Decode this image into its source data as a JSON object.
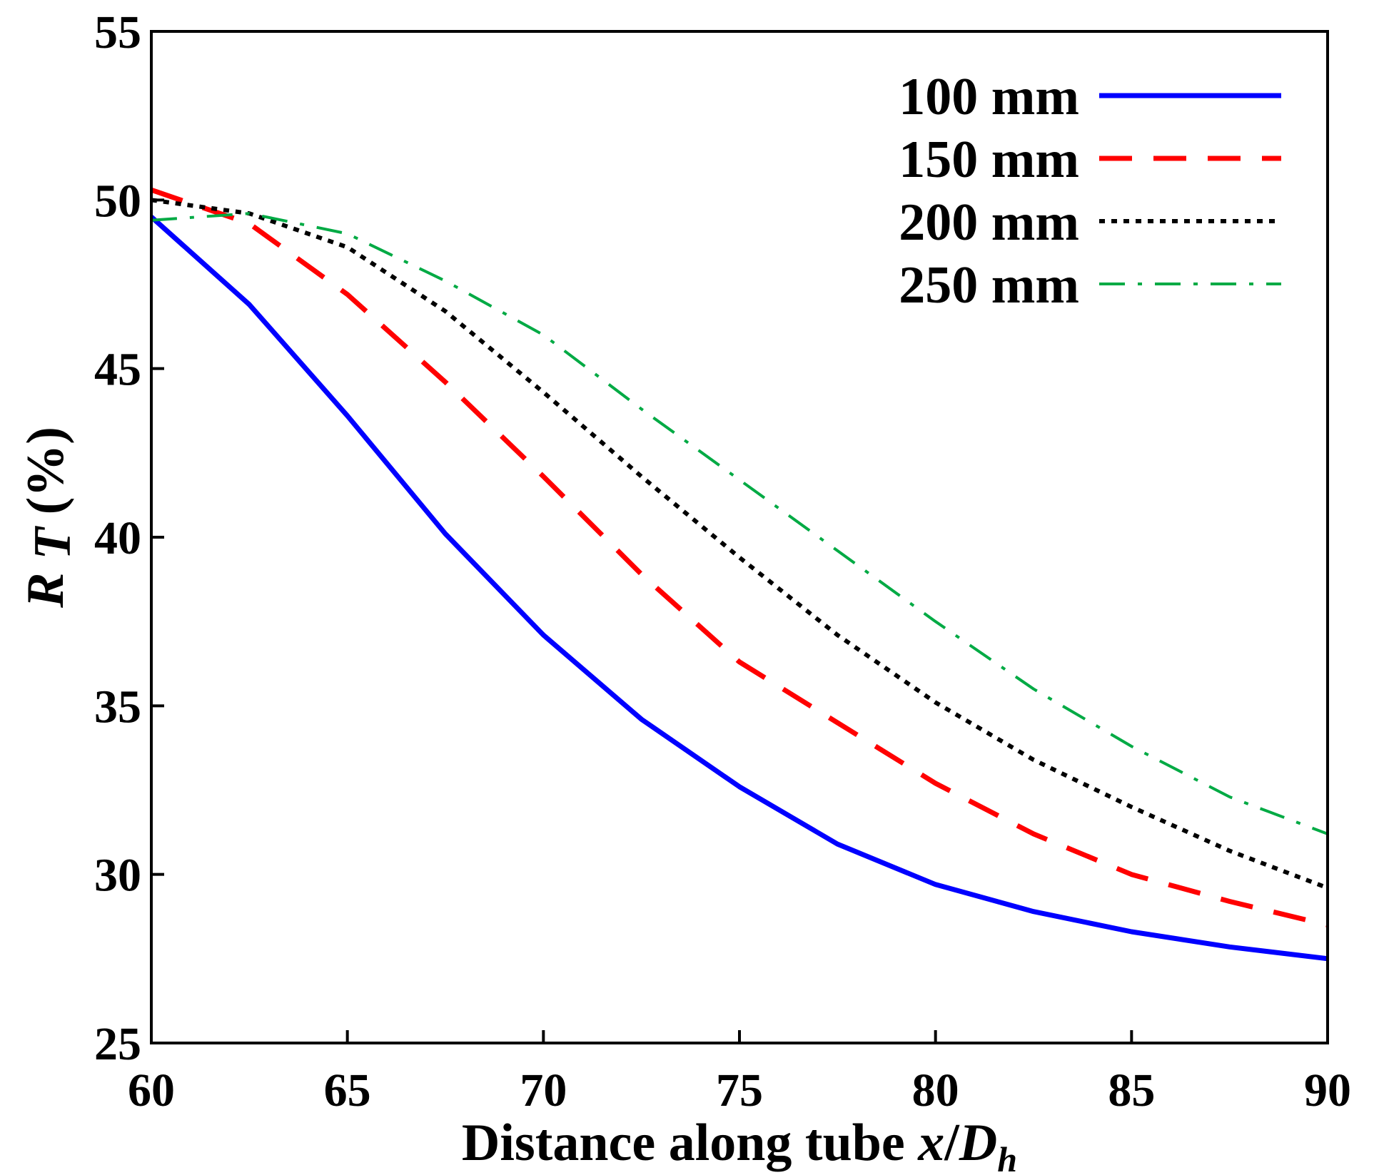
{
  "chart_data": {
    "type": "line",
    "title": "",
    "xlabel": {
      "prefix": "Distance along tube ",
      "var": "x",
      "slash": "/",
      "sub_base": "D",
      "sub": "h"
    },
    "ylabel": {
      "var": "R",
      "sub": "T",
      "unit": "(%)"
    },
    "xlim": [
      60,
      90
    ],
    "ylim": [
      25,
      55
    ],
    "xticks": [
      60,
      65,
      70,
      75,
      80,
      85,
      90
    ],
    "yticks": [
      25,
      30,
      35,
      40,
      45,
      50,
      55
    ],
    "grid": false,
    "legend_position": "top-right",
    "series": [
      {
        "name": "100 mm",
        "color": "#0000ff",
        "dash": "solid",
        "x": [
          60,
          62.5,
          65,
          67.5,
          70,
          72.5,
          75,
          77.5,
          80,
          82.5,
          85,
          87.5,
          90
        ],
        "y": [
          49.5,
          46.9,
          43.6,
          40.1,
          37.1,
          34.6,
          32.6,
          30.9,
          29.7,
          28.9,
          28.3,
          27.85,
          27.5
        ]
      },
      {
        "name": "150 mm",
        "color": "#ff0000",
        "dash": "dashed",
        "x": [
          60,
          62.5,
          65,
          67.5,
          70,
          72.5,
          75,
          77.5,
          80,
          82.5,
          85,
          87.5,
          90
        ],
        "y": [
          50.3,
          49.3,
          47.2,
          44.6,
          41.8,
          38.9,
          36.3,
          34.5,
          32.7,
          31.2,
          30.0,
          29.2,
          28.5
        ]
      },
      {
        "name": "200 mm",
        "color": "#000000",
        "dash": "dotted",
        "x": [
          60,
          62.5,
          65,
          67.5,
          70,
          72.5,
          75,
          77.5,
          80,
          82.5,
          85,
          87.5,
          90
        ],
        "y": [
          50.0,
          49.6,
          48.6,
          46.7,
          44.3,
          41.8,
          39.4,
          37.1,
          35.1,
          33.4,
          32.0,
          30.7,
          29.6
        ]
      },
      {
        "name": "250 mm",
        "color": "#00aa44",
        "dash": "dashdot",
        "x": [
          60,
          62.5,
          65,
          67.5,
          70,
          72.5,
          75,
          77.5,
          80,
          82.5,
          85,
          87.5,
          90
        ],
        "y": [
          49.4,
          49.6,
          49.0,
          47.6,
          46.0,
          43.8,
          41.7,
          39.6,
          37.5,
          35.5,
          33.8,
          32.3,
          31.2
        ]
      }
    ]
  }
}
